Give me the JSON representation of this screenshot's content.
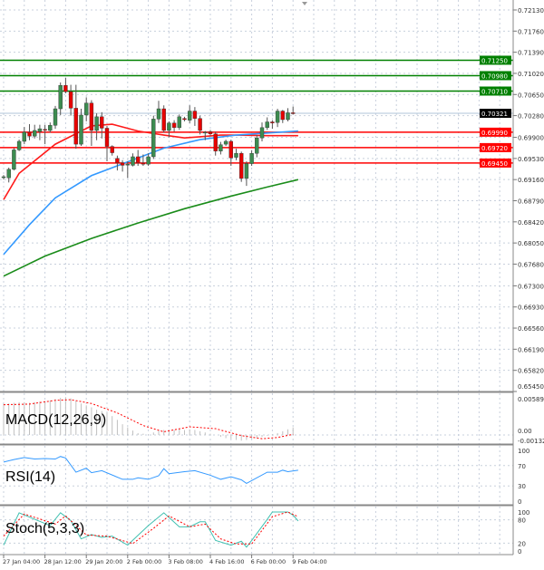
{
  "chart_data": [
    {
      "type": "candlestick",
      "panel": "price",
      "instrument_timeframe_hint": "",
      "y_ticks": [
        "0.72130",
        "0.71760",
        "0.71390",
        "0.71020",
        "0.70650",
        "0.70280",
        "0.69900",
        "0.69530",
        "0.69160",
        "0.68790",
        "0.68420",
        "0.68050",
        "0.67680",
        "0.67300",
        "0.66930",
        "0.66560",
        "0.66190",
        "0.65820",
        "0.65450"
      ],
      "ylim": [
        0.6545,
        0.7213
      ],
      "x_tick_labels": [
        "27 Jan 04:00",
        "28 Jan 12:00",
        "29 Jan 20:00",
        "2 Feb 00:00",
        "3 Feb 08:00",
        "4 Feb 16:00",
        "6 Feb 00:00",
        "9 Feb 04:00"
      ],
      "x_tick_every_bars": 8,
      "grid": true,
      "current_price": {
        "value": "0.70321",
        "color": "#000000"
      },
      "resistance_levels": [
        {
          "value": "0.71250",
          "color": "#008000"
        },
        {
          "value": "0.70980",
          "color": "#008000"
        },
        {
          "value": "0.70710",
          "color": "#008000"
        }
      ],
      "support_levels": [
        {
          "value": "0.69990",
          "color": "#ff0000"
        },
        {
          "value": "0.69720",
          "color": "#ff0000"
        },
        {
          "value": "0.69450",
          "color": "#ff0000"
        }
      ],
      "candles_ohlc": [
        [
          0.692,
          0.6924,
          0.6916,
          0.6921
        ],
        [
          0.6919,
          0.6937,
          0.6911,
          0.6934
        ],
        [
          0.6934,
          0.6971,
          0.6932,
          0.6968
        ],
        [
          0.6968,
          0.6986,
          0.6966,
          0.6983
        ],
        [
          0.6983,
          0.7008,
          0.6978,
          0.6999
        ],
        [
          0.6999,
          0.7013,
          0.6985,
          0.6992
        ],
        [
          0.6992,
          0.7012,
          0.6988,
          0.7002
        ],
        [
          0.7,
          0.7012,
          0.6985,
          0.7005
        ],
        [
          0.7004,
          0.7012,
          0.6978,
          0.7003
        ],
        [
          0.7002,
          0.7016,
          0.6998,
          0.7011
        ],
        [
          0.7011,
          0.7045,
          0.7005,
          0.704
        ],
        [
          0.704,
          0.7086,
          0.7029,
          0.7081
        ],
        [
          0.7081,
          0.7094,
          0.7067,
          0.707
        ],
        [
          0.707,
          0.7082,
          0.7028,
          0.7041
        ],
        [
          0.7041,
          0.7082,
          0.697,
          0.6978
        ],
        [
          0.6978,
          0.704,
          0.6975,
          0.7029
        ],
        [
          0.7029,
          0.706,
          0.7018,
          0.705
        ],
        [
          0.705,
          0.7055,
          0.6975,
          0.7002
        ],
        [
          0.7002,
          0.7032,
          0.6985,
          0.7026
        ],
        [
          0.7026,
          0.7034,
          0.6988,
          0.7006
        ],
        [
          0.7006,
          0.701,
          0.6948,
          0.6974
        ],
        [
          0.6974,
          0.6976,
          0.6958,
          0.6963
        ],
        [
          0.6953,
          0.6958,
          0.6932,
          0.6945
        ],
        [
          0.6945,
          0.695,
          0.693,
          0.6941
        ],
        [
          0.6942,
          0.6948,
          0.6919,
          0.6943
        ],
        [
          0.6941,
          0.6962,
          0.6939,
          0.6956
        ],
        [
          0.6956,
          0.6968,
          0.694,
          0.6945
        ],
        [
          0.6945,
          0.696,
          0.694,
          0.6943
        ],
        [
          0.6943,
          0.6962,
          0.694,
          0.6956
        ],
        [
          0.6956,
          0.7028,
          0.6952,
          0.7022
        ],
        [
          0.7022,
          0.7054,
          0.7015,
          0.704
        ],
        [
          0.704,
          0.7046,
          0.6998,
          0.7002
        ],
        [
          0.7002,
          0.7018,
          0.699,
          0.7015
        ],
        [
          0.7015,
          0.702,
          0.7,
          0.7007
        ],
        [
          0.7007,
          0.703,
          0.7003,
          0.7026
        ],
        [
          0.7023,
          0.7026,
          0.7018,
          0.7021
        ],
        [
          0.702,
          0.7046,
          0.7015,
          0.7036
        ],
        [
          0.7036,
          0.7043,
          0.701,
          0.7023
        ],
        [
          0.7023,
          0.7028,
          0.6995,
          0.7002
        ],
        [
          0.6998,
          0.7001,
          0.6985,
          0.6999
        ],
        [
          0.7,
          0.7003,
          0.6993,
          0.6996
        ],
        [
          0.6996,
          0.7,
          0.6958,
          0.6966
        ],
        [
          0.6966,
          0.6982,
          0.696,
          0.6977
        ],
        [
          0.6978,
          0.6986,
          0.6975,
          0.6983
        ],
        [
          0.6983,
          0.6986,
          0.694,
          0.6954
        ],
        [
          0.6955,
          0.697,
          0.695,
          0.6962
        ],
        [
          0.6962,
          0.6965,
          0.6912,
          0.6918
        ],
        [
          0.6918,
          0.6948,
          0.6905,
          0.6944
        ],
        [
          0.6944,
          0.6967,
          0.694,
          0.6962
        ],
        [
          0.6962,
          0.6994,
          0.6955,
          0.6989
        ],
        [
          0.6989,
          0.7016,
          0.6983,
          0.7007
        ],
        [
          0.7007,
          0.7025,
          0.7003,
          0.7017
        ],
        [
          0.7017,
          0.702,
          0.7005,
          0.7015
        ],
        [
          0.7016,
          0.704,
          0.7008,
          0.7036
        ],
        [
          0.7036,
          0.7038,
          0.7015,
          0.7021
        ],
        [
          0.7021,
          0.7041,
          0.7018,
          0.7033
        ],
        [
          0.7033,
          0.7044,
          0.703,
          0.7032
        ]
      ],
      "colors": {
        "bull": "#3c8c50",
        "bear": "#e60000",
        "wick": "#555555"
      },
      "moving_averages": [
        {
          "color": "#ff1a1a",
          "points_bar_price": [
            [
              0,
              0.6881
            ],
            [
              3,
              0.6927
            ],
            [
              10,
              0.6978
            ],
            [
              17,
              0.701
            ],
            [
              21,
              0.7013
            ],
            [
              26,
              0.7001
            ],
            [
              31,
              0.6994
            ],
            [
              35,
              0.6989
            ],
            [
              38,
              0.6991
            ],
            [
              42,
              0.6994
            ],
            [
              45,
              0.6994
            ],
            [
              51,
              0.6993
            ],
            [
              57,
              0.6993
            ]
          ]
        },
        {
          "color": "#3399ff",
          "points_bar_price": [
            [
              0,
              0.6785
            ],
            [
              5,
              0.6837
            ],
            [
              10,
              0.6884
            ],
            [
              17,
              0.6923
            ],
            [
              24,
              0.6947
            ],
            [
              31,
              0.6971
            ],
            [
              38,
              0.6986
            ],
            [
              45,
              0.6994
            ],
            [
              57,
              0.7001
            ]
          ]
        },
        {
          "color": "#1a8c1a",
          "points_bar_price": [
            [
              0,
              0.6747
            ],
            [
              8,
              0.6782
            ],
            [
              17,
              0.6813
            ],
            [
              26,
              0.684
            ],
            [
              35,
              0.6865
            ],
            [
              44,
              0.6887
            ],
            [
              51,
              0.6903
            ],
            [
              57,
              0.6916
            ]
          ]
        }
      ]
    },
    {
      "type": "bar+line",
      "panel": "MACD",
      "label": "MACD(12,26,9)",
      "y_ticks": [
        "0.005897",
        "0.00",
        "-0.001329"
      ],
      "ylim": [
        -0.001329,
        0.005897
      ],
      "histogram": [
        0.005,
        0.005,
        0.0051,
        0.0052,
        0.0052,
        0.0051,
        0.0052,
        0.0053,
        0.0054,
        0.0055,
        0.0057,
        0.0059,
        0.006,
        0.0058,
        0.0054,
        0.005,
        0.0047,
        0.0044,
        0.004,
        0.0038,
        0.0035,
        0.003,
        0.0024,
        0.0017,
        0.0012,
        0.0007,
        0.0003,
        0.0002,
        0.0001,
        0.0004,
        0.0008,
        0.0008,
        0.0007,
        0.0008,
        0.0009,
        0.0008,
        0.0009,
        0.0008,
        0.0006,
        0.0004,
        0.0002,
        0.0,
        -0.0003,
        -0.0005,
        -0.0006,
        -0.0008,
        -0.0009,
        -0.0008,
        -0.0006,
        -0.0005,
        -0.0003,
        -0.0001,
        0.0001,
        0.0003,
        0.0006,
        0.0009,
        0.0012
      ],
      "signal_points_bar_value": [
        [
          0,
          0.0048
        ],
        [
          5,
          0.0049
        ],
        [
          10,
          0.0055
        ],
        [
          13,
          0.0056
        ],
        [
          17,
          0.005
        ],
        [
          22,
          0.0035
        ],
        [
          27,
          0.0015
        ],
        [
          31,
          0.0005
        ],
        [
          36,
          0.0013
        ],
        [
          41,
          0.001
        ],
        [
          46,
          -0.0001
        ],
        [
          50,
          -0.0006
        ],
        [
          53,
          -0.0004
        ],
        [
          56,
          0.0001
        ]
      ],
      "colors": {
        "histogram": "#c0c0c0",
        "signal": "#ff0000"
      }
    },
    {
      "type": "line",
      "panel": "RSI",
      "label": "RSI(14)",
      "y_ticks": [
        "100",
        "70",
        "30",
        "0"
      ],
      "ylim": [
        0,
        100
      ],
      "points_bar_value": [
        [
          0,
          77
        ],
        [
          2,
          82
        ],
        [
          4,
          86
        ],
        [
          6,
          83
        ],
        [
          8,
          84
        ],
        [
          10,
          83
        ],
        [
          11,
          88
        ],
        [
          12,
          85
        ],
        [
          14,
          57
        ],
        [
          16,
          65
        ],
        [
          17,
          56
        ],
        [
          19,
          60
        ],
        [
          23,
          43
        ],
        [
          25,
          43
        ],
        [
          26,
          46
        ],
        [
          28,
          43
        ],
        [
          30,
          50
        ],
        [
          31,
          64
        ],
        [
          32,
          54
        ],
        [
          35,
          58
        ],
        [
          37,
          60
        ],
        [
          40,
          51
        ],
        [
          42,
          43
        ],
        [
          44,
          48
        ],
        [
          46,
          42
        ],
        [
          47,
          35
        ],
        [
          51,
          57
        ],
        [
          53,
          57
        ],
        [
          54,
          61
        ],
        [
          55,
          58
        ],
        [
          57,
          61
        ]
      ],
      "color": "#3399ff"
    },
    {
      "type": "line",
      "panel": "Stochastic",
      "label": "Stoch(5,3,3)",
      "y_ticks": [
        "100",
        "80",
        "20",
        "0"
      ],
      "ylim": [
        0,
        100
      ],
      "series": [
        {
          "color": "#40c0b0",
          "points_bar_value": [
            [
              0,
              15
            ],
            [
              3,
              98
            ],
            [
              9,
              65
            ],
            [
              11,
              98
            ],
            [
              13,
              78
            ],
            [
              15,
              31
            ],
            [
              17,
              42
            ],
            [
              19,
              35
            ],
            [
              21,
              38
            ],
            [
              24,
              15
            ],
            [
              28,
              65
            ],
            [
              31,
              98
            ],
            [
              34,
              62
            ],
            [
              36,
              62
            ],
            [
              38,
              75
            ],
            [
              39,
              75
            ],
            [
              41,
              27
            ],
            [
              44,
              15
            ],
            [
              46,
              25
            ],
            [
              47,
              10
            ],
            [
              48,
              27
            ],
            [
              51,
              81
            ],
            [
              52,
              100
            ],
            [
              55,
              100
            ],
            [
              56,
              92
            ],
            [
              57,
              77
            ]
          ]
        },
        {
          "color": "#ff0000",
          "points_bar_value": [
            [
              0,
              38
            ],
            [
              4,
              95
            ],
            [
              10,
              69
            ],
            [
              12,
              90
            ],
            [
              16,
              41
            ],
            [
              20,
              38
            ],
            [
              25,
              19
            ],
            [
              29,
              58
            ],
            [
              32,
              90
            ],
            [
              36,
              62
            ],
            [
              39,
              69
            ],
            [
              42,
              31
            ],
            [
              45,
              18
            ],
            [
              48,
              18
            ],
            [
              52,
              88
            ],
            [
              55,
              100
            ],
            [
              57,
              88
            ]
          ]
        }
      ]
    }
  ]
}
